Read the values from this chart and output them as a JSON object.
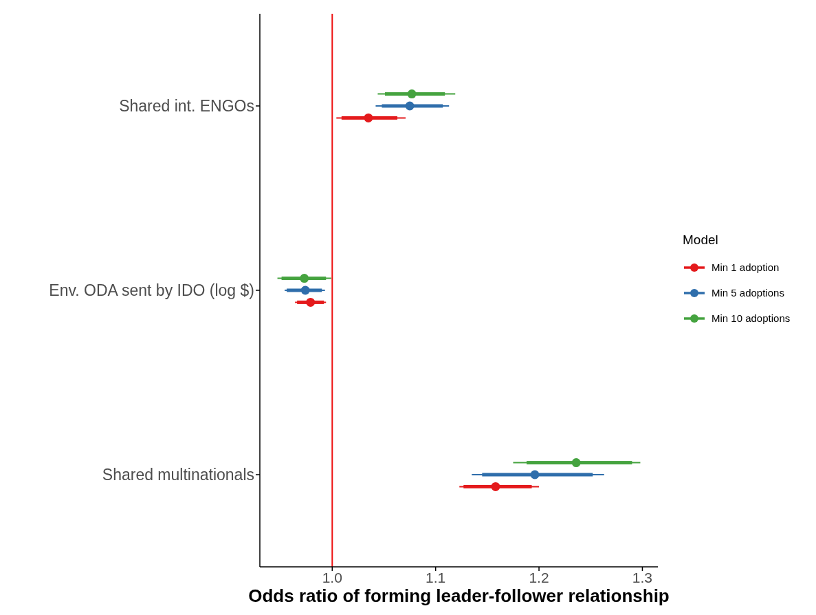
{
  "chart_data": {
    "type": "box",
    "orientation": "horizontal",
    "xlabel": "Odds ratio of forming leader-follower relationship",
    "legend_title": "Model",
    "legend": "right",
    "marker": "circle",
    "categories": [
      "Shared int. ENGOs",
      "Env. ODA sent by IDO (log $)",
      "Shared multinationals"
    ],
    "xlim": [
      0.93,
      1.315
    ],
    "xticks": [
      {
        "value": 1,
        "label": "1.0"
      },
      1.1,
      1.2,
      1.3
    ],
    "series": [
      {
        "name": "Min 1 adoption",
        "color": "#e41a1c",
        "boxes": [
          {
            "low": 1.004,
            "q1": 1.009,
            "median": 1.035,
            "q3": 1.063,
            "high": 1.071
          },
          {
            "low": 0.964,
            "q1": 0.966,
            "median": 0.979,
            "q3": 0.992,
            "high": 0.994
          },
          {
            "low": 1.123,
            "q1": 1.127,
            "median": 1.158,
            "q3": 1.193,
            "high": 1.2
          }
        ]
      },
      {
        "name": "Min 5 adoptions",
        "color": "#2f6eab",
        "boxes": [
          {
            "low": 1.042,
            "q1": 1.048,
            "median": 1.075,
            "q3": 1.107,
            "high": 1.113
          },
          {
            "low": 0.954,
            "q1": 0.956,
            "median": 0.974,
            "q3": 0.99,
            "high": 0.993
          },
          {
            "low": 1.135,
            "q1": 1.145,
            "median": 1.196,
            "q3": 1.252,
            "high": 1.263
          }
        ]
      },
      {
        "name": "Min 10 adoptions",
        "color": "#45a33f",
        "boxes": [
          {
            "low": 1.044,
            "q1": 1.051,
            "median": 1.077,
            "q3": 1.109,
            "high": 1.119
          },
          {
            "low": 0.947,
            "q1": 0.951,
            "median": 0.973,
            "q3": 0.994,
            "high": 0.999
          },
          {
            "low": 1.175,
            "q1": 1.188,
            "median": 1.236,
            "q3": 1.29,
            "high": 1.298
          }
        ]
      }
    ],
    "ref_lines": [
      {
        "axis": "x",
        "value": 1,
        "color": "#ee1111"
      }
    ]
  }
}
